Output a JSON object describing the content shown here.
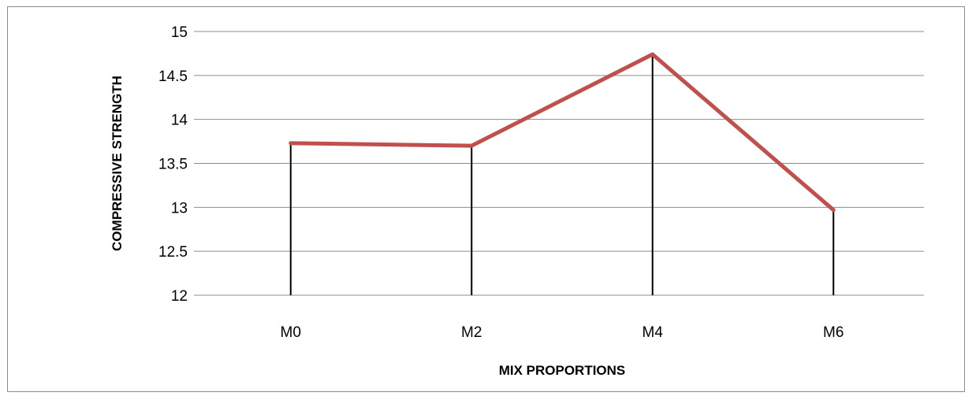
{
  "chart_data": {
    "type": "line",
    "categories": [
      "M0",
      "M2",
      "M4",
      "M6"
    ],
    "values": [
      13.73,
      13.7,
      14.74,
      12.97
    ],
    "xlabel": "MIX PROPORTIONS",
    "ylabel": "COMPRESSIVE STRENGTH",
    "ylim": [
      12,
      15
    ],
    "yticks": [
      "12",
      "12.5",
      "13",
      "13.5",
      "14",
      "14.5",
      "15"
    ],
    "grid": true,
    "drop_lines": true,
    "legend": "none",
    "colors": {
      "line": "#c0504d",
      "grid": "#8c8c8c",
      "drop_line": "#000000"
    }
  }
}
